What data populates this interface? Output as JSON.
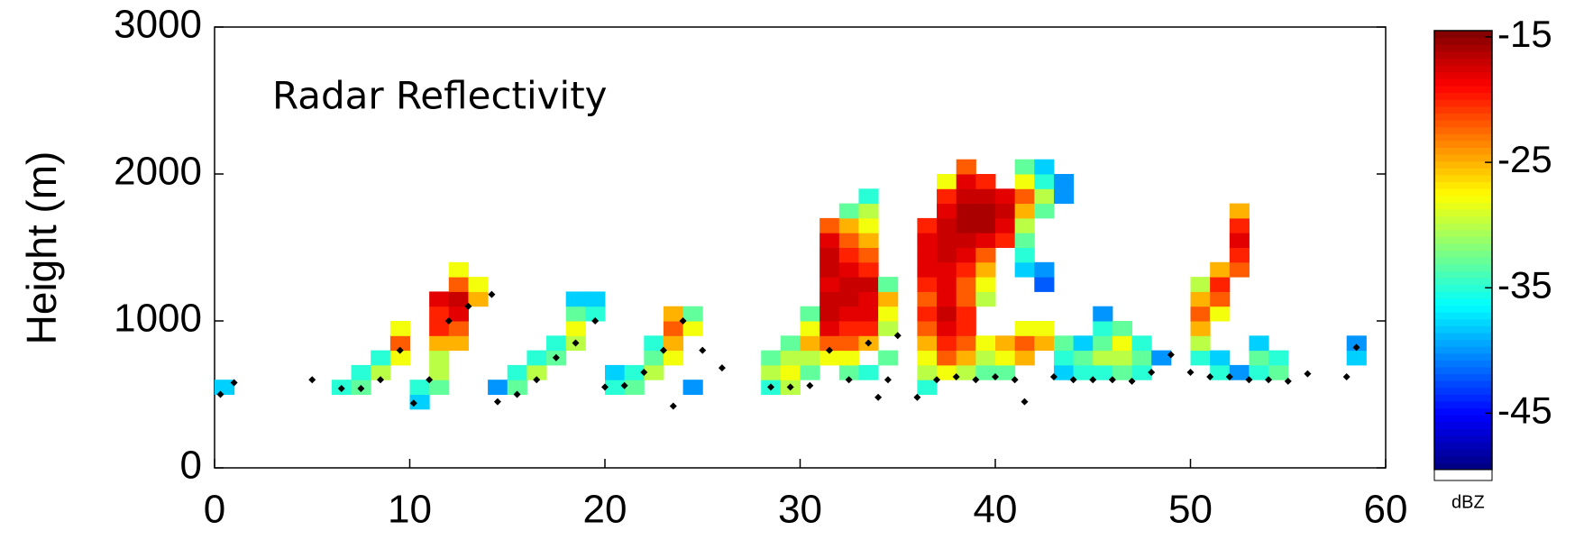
{
  "chart_data": {
    "type": "heatmap",
    "annotation": "Radar Reflectivity",
    "ylabel": "Height (m)",
    "colorbar_label": "dBZ",
    "xlim": [
      0,
      60
    ],
    "xticks": [
      0,
      10,
      20,
      30,
      40,
      50,
      60
    ],
    "ylim": [
      0,
      3000
    ],
    "yticks": [
      0,
      1000,
      2000,
      3000
    ],
    "clim": [
      -49.5,
      -14.5
    ],
    "cticks": [
      -15,
      -25,
      -35,
      -45
    ],
    "colormap": "jet",
    "cells": {
      "x": [
        0,
        6,
        7,
        7,
        8,
        8,
        9,
        9,
        9,
        10,
        10,
        11,
        11,
        11,
        11,
        11,
        11,
        11,
        12,
        12,
        12,
        12,
        12,
        12,
        13,
        13,
        14,
        15,
        15,
        16,
        16,
        17,
        17,
        18,
        18,
        18,
        18,
        19,
        19,
        20,
        20,
        21,
        21,
        22,
        22,
        22,
        23,
        23,
        23,
        23,
        24,
        24,
        24,
        28,
        28,
        28,
        29,
        29,
        29,
        29,
        30,
        30,
        30,
        30,
        30,
        31,
        31,
        31,
        31,
        31,
        31,
        31,
        31,
        31,
        31,
        32,
        32,
        32,
        32,
        32,
        32,
        32,
        32,
        32,
        32,
        32,
        32,
        33,
        33,
        33,
        33,
        33,
        33,
        33,
        33,
        33,
        33,
        33,
        33,
        34,
        34,
        34,
        34,
        34,
        36,
        36,
        36,
        36,
        36,
        36,
        36,
        36,
        36,
        36,
        36,
        36,
        37,
        37,
        37,
        37,
        37,
        37,
        37,
        37,
        37,
        37,
        37,
        37,
        37,
        37,
        38,
        38,
        38,
        38,
        38,
        38,
        38,
        38,
        38,
        38,
        38,
        38,
        38,
        38,
        38,
        39,
        39,
        39,
        39,
        39,
        39,
        39,
        39,
        39,
        39,
        39,
        39,
        40,
        40,
        40,
        40,
        40,
        40,
        40,
        41,
        41,
        41,
        41,
        41,
        41,
        41,
        41,
        41,
        41,
        41,
        42,
        42,
        42,
        42,
        42,
        42,
        42,
        42,
        43,
        43,
        43,
        43,
        43,
        44,
        44,
        44,
        45,
        45,
        45,
        45,
        45,
        46,
        46,
        46,
        46,
        47,
        47,
        47,
        48,
        50,
        50,
        50,
        50,
        50,
        50,
        51,
        51,
        51,
        51,
        51,
        51,
        52,
        52,
        52,
        52,
        52,
        52,
        53,
        53,
        53,
        54,
        54,
        58,
        58
      ],
      "y": [
        500,
        500,
        500,
        600,
        600,
        700,
        700,
        800,
        900,
        400,
        500,
        500,
        600,
        700,
        800,
        900,
        1000,
        1100,
        800,
        900,
        1000,
        1100,
        1200,
        1300,
        1100,
        1200,
        500,
        500,
        600,
        600,
        700,
        700,
        800,
        800,
        900,
        1000,
        1100,
        1000,
        1100,
        500,
        600,
        500,
        600,
        600,
        700,
        800,
        700,
        800,
        900,
        1000,
        500,
        900,
        1000,
        500,
        600,
        700,
        500,
        600,
        700,
        800,
        600,
        700,
        800,
        900,
        1000,
        700,
        800,
        900,
        1000,
        1100,
        1200,
        1300,
        1400,
        1500,
        1600,
        600,
        700,
        800,
        900,
        1000,
        1100,
        1200,
        1300,
        1400,
        1500,
        1600,
        1700,
        600,
        800,
        900,
        1000,
        1100,
        1200,
        1300,
        1400,
        1500,
        1600,
        1700,
        1800,
        700,
        900,
        1000,
        1100,
        1200,
        500,
        600,
        700,
        800,
        900,
        1000,
        1100,
        1200,
        1300,
        1400,
        1500,
        1600,
        600,
        700,
        800,
        900,
        1000,
        1100,
        1200,
        1300,
        1400,
        1500,
        1600,
        1700,
        1800,
        1900,
        600,
        700,
        800,
        900,
        1000,
        1100,
        1200,
        1300,
        1400,
        1500,
        1600,
        1700,
        1800,
        1900,
        2000,
        600,
        700,
        800,
        1100,
        1200,
        1300,
        1400,
        1500,
        1600,
        1700,
        1800,
        1900,
        600,
        700,
        800,
        1500,
        1600,
        1700,
        1800,
        700,
        800,
        900,
        1300,
        1400,
        1500,
        1600,
        1700,
        1800,
        1900,
        2000,
        800,
        900,
        1200,
        1300,
        1700,
        1800,
        1900,
        2000,
        600,
        700,
        800,
        1800,
        1900,
        600,
        700,
        800,
        600,
        700,
        800,
        900,
        1000,
        600,
        700,
        800,
        900,
        600,
        700,
        800,
        700,
        700,
        800,
        900,
        1000,
        1100,
        1200,
        600,
        700,
        1000,
        1100,
        1200,
        1300,
        600,
        1300,
        1400,
        1500,
        1600,
        1700,
        600,
        700,
        800,
        600,
        700,
        700,
        800
      ],
      "values": [
        -38,
        -35,
        -33,
        -35,
        -30,
        -35,
        -28,
        -22,
        -28,
        -38,
        -35,
        -33,
        -30,
        -30,
        -25,
        -20,
        -20,
        -18,
        -25,
        -22,
        -18,
        -17,
        -22,
        -28,
        -25,
        -28,
        -40,
        -33,
        -35,
        -30,
        -35,
        -33,
        -35,
        -30,
        -28,
        -33,
        -38,
        -35,
        -38,
        -35,
        -38,
        -33,
        -35,
        -30,
        -33,
        -35,
        -28,
        -25,
        -22,
        -25,
        -40,
        -28,
        -33,
        -35,
        -30,
        -33,
        -30,
        -28,
        -30,
        -33,
        -33,
        -30,
        -25,
        -28,
        -33,
        -28,
        -22,
        -18,
        -17,
        -17,
        -18,
        -17,
        -17,
        -18,
        -22,
        -33,
        -28,
        -22,
        -20,
        -18,
        -17,
        -17,
        -18,
        -20,
        -22,
        -25,
        -33,
        -35,
        -25,
        -20,
        -18,
        -18,
        -17,
        -20,
        -22,
        -25,
        -28,
        -30,
        -35,
        -33,
        -30,
        -28,
        -25,
        -33,
        -35,
        -30,
        -28,
        -25,
        -22,
        -20,
        -22,
        -20,
        -18,
        -18,
        -18,
        -20,
        -28,
        -22,
        -20,
        -18,
        -17,
        -18,
        -18,
        -18,
        -17,
        -17,
        -17,
        -18,
        -20,
        -28,
        -30,
        -25,
        -22,
        -20,
        -20,
        -22,
        -22,
        -20,
        -18,
        -17,
        -16,
        -16,
        -17,
        -18,
        -22,
        -33,
        -30,
        -28,
        -30,
        -28,
        -25,
        -22,
        -18,
        -16,
        -16,
        -17,
        -20,
        -33,
        -28,
        -25,
        -20,
        -18,
        -17,
        -18,
        -25,
        -22,
        -28,
        -38,
        -35,
        -33,
        -30,
        -25,
        -22,
        -28,
        -33,
        -25,
        -28,
        -42,
        -40,
        -33,
        -30,
        -35,
        -38,
        -38,
        -35,
        -33,
        -40,
        -40,
        -35,
        -33,
        -38,
        -35,
        -30,
        -33,
        -35,
        -40,
        -33,
        -30,
        -28,
        -33,
        -35,
        -33,
        -35,
        -40,
        -35,
        -30,
        -25,
        -22,
        -25,
        -30,
        -35,
        -38,
        -28,
        -22,
        -20,
        -25,
        -40,
        -22,
        -20,
        -18,
        -20,
        -25,
        -35,
        -33,
        -38,
        -33,
        -35,
        -38,
        -40
      ]
    },
    "cloud_base": {
      "x": [
        0.3,
        1,
        5,
        6.5,
        7.5,
        8.5,
        9.5,
        10.2,
        11,
        12,
        13,
        14.2,
        14.5,
        15.5,
        16.5,
        17.5,
        18.5,
        19.5,
        20,
        21,
        22,
        23,
        24,
        23.5,
        25,
        26,
        28.5,
        29.5,
        30.5,
        31.5,
        32.5,
        33.5,
        34.5,
        34,
        35,
        36,
        37,
        38,
        39,
        40,
        41,
        41.5,
        43,
        44,
        45,
        46,
        47,
        48,
        49,
        50,
        51,
        52,
        53,
        54,
        55,
        56,
        58,
        58.5
      ],
      "y": [
        500,
        580,
        600,
        540,
        540,
        600,
        800,
        440,
        600,
        1000,
        1100,
        1180,
        450,
        500,
        600,
        750,
        850,
        1000,
        550,
        560,
        650,
        800,
        1000,
        420,
        800,
        680,
        550,
        550,
        560,
        800,
        600,
        850,
        600,
        480,
        900,
        480,
        600,
        620,
        600,
        620,
        600,
        450,
        620,
        600,
        600,
        600,
        590,
        650,
        770,
        650,
        620,
        620,
        600,
        600,
        590,
        640,
        620,
        820
      ]
    }
  }
}
